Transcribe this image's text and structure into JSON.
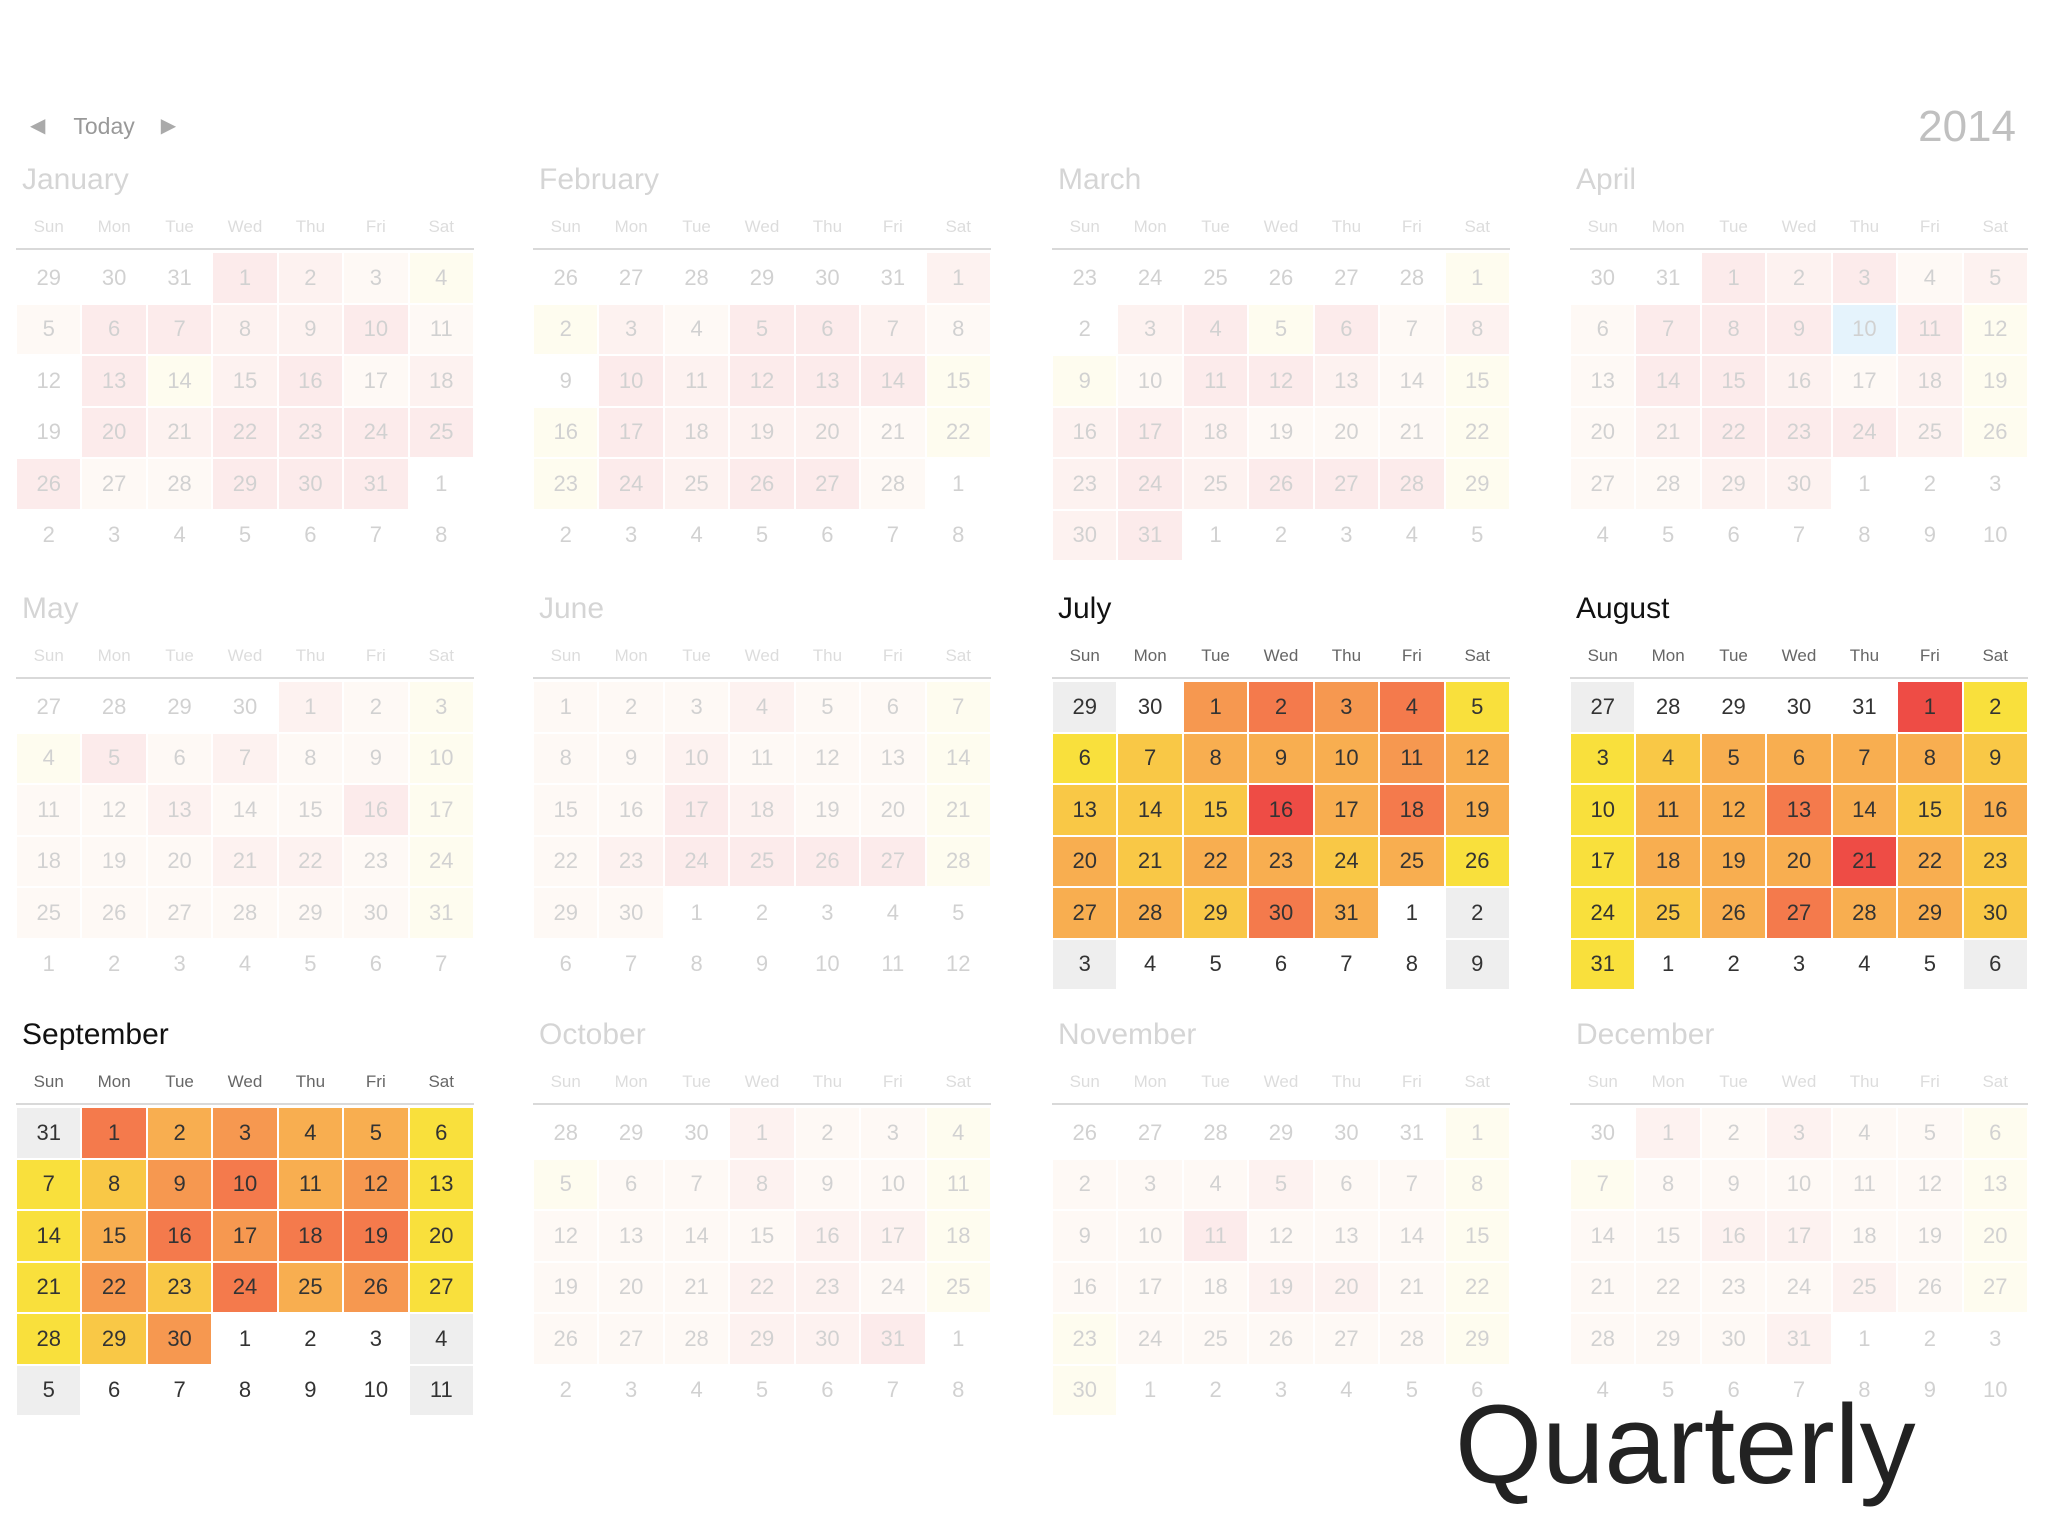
{
  "nav": {
    "prev_glyph": "◀",
    "today_label": "Today",
    "next_glyph": "▶"
  },
  "year": "2014",
  "caption": "Quarterly",
  "weekday_headers": [
    "Sun",
    "Mon",
    "Tue",
    "Wed",
    "Thu",
    "Fri",
    "Sat"
  ],
  "palette": {
    "0": "#ffffff",
    "g": "#eeeeee",
    "y": "#f9e03c",
    "yo": "#f9c846",
    "o": "#f8ae50",
    "do": "#f69850",
    "r": "#f47a4c",
    "R": "#ee4c45",
    "p1": "#fbe6d6",
    "p2": "#f9c9bd",
    "p3": "#f6a9a6",
    "py": "#fcf2bb",
    "b": "#8ccaf6"
  },
  "months": [
    {
      "name": "January",
      "focus": false,
      "days": [
        "29",
        "30",
        "31",
        "1",
        "2",
        "3",
        "4",
        "5",
        "6",
        "7",
        "8",
        "9",
        "10",
        "11",
        "12",
        "13",
        "14",
        "15",
        "16",
        "17",
        "18",
        "19",
        "20",
        "21",
        "22",
        "23",
        "24",
        "25",
        "26",
        "27",
        "28",
        "29",
        "30",
        "31",
        "1",
        "2",
        "3",
        "4",
        "5",
        "6",
        "7",
        "8"
      ],
      "heat": [
        "0",
        "0",
        "0",
        "p3",
        "p2",
        "p1",
        "py",
        "p1",
        "p3",
        "p3",
        "p2",
        "p2",
        "p3",
        "p1",
        "0",
        "p3",
        "py",
        "p2",
        "p3",
        "p1",
        "p2",
        "0",
        "p3",
        "p2",
        "p3",
        "p3",
        "p3",
        "p3",
        "p3",
        "p1",
        "p1",
        "p3",
        "p3",
        "p3",
        "0",
        "0",
        "0",
        "0",
        "0",
        "0",
        "0",
        "0"
      ]
    },
    {
      "name": "February",
      "focus": false,
      "days": [
        "26",
        "27",
        "28",
        "29",
        "30",
        "31",
        "1",
        "2",
        "3",
        "4",
        "5",
        "6",
        "7",
        "8",
        "9",
        "10",
        "11",
        "12",
        "13",
        "14",
        "15",
        "16",
        "17",
        "18",
        "19",
        "20",
        "21",
        "22",
        "23",
        "24",
        "25",
        "26",
        "27",
        "28",
        "1",
        "2",
        "3",
        "4",
        "5",
        "6",
        "7",
        "8"
      ],
      "heat": [
        "0",
        "0",
        "0",
        "0",
        "0",
        "0",
        "p2",
        "py",
        "p2",
        "p1",
        "p3",
        "p3",
        "p2",
        "p1",
        "0",
        "p3",
        "p2",
        "p3",
        "p3",
        "p3",
        "py",
        "py",
        "p3",
        "p2",
        "p2",
        "p2",
        "p1",
        "py",
        "py",
        "p3",
        "p2",
        "p3",
        "p3",
        "p1",
        "0",
        "0",
        "0",
        "0",
        "0",
        "0",
        "0",
        "0"
      ]
    },
    {
      "name": "March",
      "focus": false,
      "days": [
        "23",
        "24",
        "25",
        "26",
        "27",
        "28",
        "1",
        "2",
        "3",
        "4",
        "5",
        "6",
        "7",
        "8",
        "9",
        "10",
        "11",
        "12",
        "13",
        "14",
        "15",
        "16",
        "17",
        "18",
        "19",
        "20",
        "21",
        "22",
        "23",
        "24",
        "25",
        "26",
        "27",
        "28",
        "29",
        "30",
        "31",
        "1",
        "2",
        "3",
        "4",
        "5"
      ],
      "heat": [
        "0",
        "0",
        "0",
        "0",
        "0",
        "0",
        "py",
        "0",
        "p2",
        "p3",
        "py",
        "p3",
        "p1",
        "p2",
        "py",
        "p1",
        "p3",
        "p3",
        "p2",
        "p1",
        "py",
        "p2",
        "p3",
        "p2",
        "p1",
        "p1",
        "p1",
        "py",
        "p2",
        "p3",
        "p2",
        "p3",
        "p3",
        "p3",
        "py",
        "p2",
        "p3",
        "0",
        "0",
        "0",
        "0",
        "0"
      ]
    },
    {
      "name": "April",
      "focus": false,
      "days": [
        "30",
        "31",
        "1",
        "2",
        "3",
        "4",
        "5",
        "6",
        "7",
        "8",
        "9",
        "10",
        "11",
        "12",
        "13",
        "14",
        "15",
        "16",
        "17",
        "18",
        "19",
        "20",
        "21",
        "22",
        "23",
        "24",
        "25",
        "26",
        "27",
        "28",
        "29",
        "30",
        "1",
        "2",
        "3",
        "4",
        "5",
        "6",
        "7",
        "8",
        "9",
        "10"
      ],
      "heat": [
        "0",
        "0",
        "p3",
        "p2",
        "p3",
        "p1",
        "p2",
        "p1",
        "p3",
        "p3",
        "p3",
        "b",
        "p3",
        "py",
        "p1",
        "p3",
        "p3",
        "p2",
        "p1",
        "p2",
        "py",
        "p1",
        "p2",
        "p3",
        "p3",
        "p3",
        "p2",
        "py",
        "p1",
        "p1",
        "p2",
        "p2",
        "0",
        "0",
        "0",
        "0",
        "0",
        "0",
        "0",
        "0",
        "0",
        "0"
      ]
    },
    {
      "name": "May",
      "focus": false,
      "days": [
        "27",
        "28",
        "29",
        "30",
        "1",
        "2",
        "3",
        "4",
        "5",
        "6",
        "7",
        "8",
        "9",
        "10",
        "11",
        "12",
        "13",
        "14",
        "15",
        "16",
        "17",
        "18",
        "19",
        "20",
        "21",
        "22",
        "23",
        "24",
        "25",
        "26",
        "27",
        "28",
        "29",
        "30",
        "31",
        "1",
        "2",
        "3",
        "4",
        "5",
        "6",
        "7"
      ],
      "heat": [
        "0",
        "0",
        "0",
        "0",
        "p2",
        "p1",
        "py",
        "py",
        "p3",
        "p1",
        "p2",
        "p1",
        "p1",
        "py",
        "p1",
        "p1",
        "p2",
        "p1",
        "p1",
        "p3",
        "py",
        "p1",
        "p1",
        "p1",
        "p2",
        "p2",
        "p1",
        "py",
        "p1",
        "p1",
        "p1",
        "p1",
        "p1",
        "p1",
        "py",
        "0",
        "0",
        "0",
        "0",
        "0",
        "0",
        "0"
      ]
    },
    {
      "name": "June",
      "focus": false,
      "days": [
        "1",
        "2",
        "3",
        "4",
        "5",
        "6",
        "7",
        "8",
        "9",
        "10",
        "11",
        "12",
        "13",
        "14",
        "15",
        "16",
        "17",
        "18",
        "19",
        "20",
        "21",
        "22",
        "23",
        "24",
        "25",
        "26",
        "27",
        "28",
        "29",
        "30",
        "1",
        "2",
        "3",
        "4",
        "5",
        "6",
        "7",
        "8",
        "9",
        "10",
        "11",
        "12"
      ],
      "heat": [
        "p1",
        "p1",
        "p1",
        "p2",
        "p1",
        "p1",
        "py",
        "p1",
        "p1",
        "p2",
        "p1",
        "p1",
        "p1",
        "py",
        "p1",
        "p1",
        "p3",
        "p2",
        "p1",
        "p1",
        "py",
        "p1",
        "p2",
        "p3",
        "p3",
        "p3",
        "p3",
        "py",
        "p1",
        "p1",
        "0",
        "0",
        "0",
        "0",
        "0",
        "0",
        "0",
        "0",
        "0",
        "0",
        "0",
        "0"
      ]
    },
    {
      "name": "July",
      "focus": true,
      "days": [
        "29",
        "30",
        "1",
        "2",
        "3",
        "4",
        "5",
        "6",
        "7",
        "8",
        "9",
        "10",
        "11",
        "12",
        "13",
        "14",
        "15",
        "16",
        "17",
        "18",
        "19",
        "20",
        "21",
        "22",
        "23",
        "24",
        "25",
        "26",
        "27",
        "28",
        "29",
        "30",
        "31",
        "1",
        "2",
        "3",
        "4",
        "5",
        "6",
        "7",
        "8",
        "9"
      ],
      "heat": [
        "g",
        "0",
        "do",
        "r",
        "do",
        "r",
        "y",
        "y",
        "yo",
        "o",
        "o",
        "o",
        "do",
        "o",
        "yo",
        "yo",
        "yo",
        "R",
        "o",
        "r",
        "o",
        "o",
        "yo",
        "o",
        "o",
        "yo",
        "o",
        "y",
        "o",
        "o",
        "yo",
        "r",
        "o",
        "0",
        "g",
        "g",
        "0",
        "0",
        "0",
        "0",
        "0",
        "g"
      ]
    },
    {
      "name": "August",
      "focus": true,
      "days": [
        "27",
        "28",
        "29",
        "30",
        "31",
        "1",
        "2",
        "3",
        "4",
        "5",
        "6",
        "7",
        "8",
        "9",
        "10",
        "11",
        "12",
        "13",
        "14",
        "15",
        "16",
        "17",
        "18",
        "19",
        "20",
        "21",
        "22",
        "23",
        "24",
        "25",
        "26",
        "27",
        "28",
        "29",
        "30",
        "31",
        "1",
        "2",
        "3",
        "4",
        "5",
        "6"
      ],
      "heat": [
        "g",
        "0",
        "0",
        "0",
        "0",
        "R",
        "y",
        "y",
        "yo",
        "o",
        "o",
        "o",
        "o",
        "yo",
        "y",
        "o",
        "o",
        "r",
        "o",
        "yo",
        "o",
        "y",
        "o",
        "o",
        "o",
        "R",
        "o",
        "yo",
        "y",
        "yo",
        "o",
        "r",
        "o",
        "o",
        "yo",
        "y",
        "0",
        "0",
        "0",
        "0",
        "0",
        "g"
      ]
    },
    {
      "name": "September",
      "focus": true,
      "days": [
        "31",
        "1",
        "2",
        "3",
        "4",
        "5",
        "6",
        "7",
        "8",
        "9",
        "10",
        "11",
        "12",
        "13",
        "14",
        "15",
        "16",
        "17",
        "18",
        "19",
        "20",
        "21",
        "22",
        "23",
        "24",
        "25",
        "26",
        "27",
        "28",
        "29",
        "30",
        "1",
        "2",
        "3",
        "4",
        "5",
        "6",
        "7",
        "8",
        "9",
        "10",
        "11"
      ],
      "heat": [
        "g",
        "r",
        "o",
        "do",
        "o",
        "o",
        "y",
        "y",
        "yo",
        "do",
        "r",
        "o",
        "do",
        "y",
        "y",
        "o",
        "r",
        "do",
        "r",
        "r",
        "y",
        "y",
        "do",
        "yo",
        "r",
        "o",
        "do",
        "y",
        "y",
        "yo",
        "do",
        "0",
        "0",
        "0",
        "g",
        "g",
        "0",
        "0",
        "0",
        "0",
        "0",
        "g"
      ]
    },
    {
      "name": "October",
      "focus": false,
      "days": [
        "28",
        "29",
        "30",
        "1",
        "2",
        "3",
        "4",
        "5",
        "6",
        "7",
        "8",
        "9",
        "10",
        "11",
        "12",
        "13",
        "14",
        "15",
        "16",
        "17",
        "18",
        "19",
        "20",
        "21",
        "22",
        "23",
        "24",
        "25",
        "26",
        "27",
        "28",
        "29",
        "30",
        "31",
        "1",
        "2",
        "3",
        "4",
        "5",
        "6",
        "7",
        "8"
      ],
      "heat": [
        "0",
        "0",
        "0",
        "p2",
        "p1",
        "p1",
        "py",
        "py",
        "p1",
        "p1",
        "p2",
        "p1",
        "p1",
        "py",
        "p1",
        "p1",
        "p1",
        "p1",
        "p2",
        "p2",
        "py",
        "p1",
        "p1",
        "p1",
        "p2",
        "p2",
        "p1",
        "py",
        "p1",
        "p1",
        "p1",
        "p2",
        "p2",
        "p3",
        "0",
        "0",
        "0",
        "0",
        "0",
        "0",
        "0",
        "0"
      ]
    },
    {
      "name": "November",
      "focus": false,
      "days": [
        "26",
        "27",
        "28",
        "29",
        "30",
        "31",
        "1",
        "2",
        "3",
        "4",
        "5",
        "6",
        "7",
        "8",
        "9",
        "10",
        "11",
        "12",
        "13",
        "14",
        "15",
        "16",
        "17",
        "18",
        "19",
        "20",
        "21",
        "22",
        "23",
        "24",
        "25",
        "26",
        "27",
        "28",
        "29",
        "30",
        "1",
        "2",
        "3",
        "4",
        "5",
        "6"
      ],
      "heat": [
        "0",
        "0",
        "0",
        "0",
        "0",
        "0",
        "py",
        "p1",
        "p1",
        "p1",
        "p2",
        "p1",
        "p1",
        "py",
        "p1",
        "p1",
        "p3",
        "p1",
        "p1",
        "p1",
        "py",
        "p1",
        "p1",
        "p1",
        "p2",
        "p2",
        "p1",
        "py",
        "py",
        "p1",
        "p1",
        "p1",
        "p1",
        "p1",
        "py",
        "py",
        "0",
        "0",
        "0",
        "0",
        "0",
        "0"
      ]
    },
    {
      "name": "December",
      "focus": false,
      "days": [
        "30",
        "1",
        "2",
        "3",
        "4",
        "5",
        "6",
        "7",
        "8",
        "9",
        "10",
        "11",
        "12",
        "13",
        "14",
        "15",
        "16",
        "17",
        "18",
        "19",
        "20",
        "21",
        "22",
        "23",
        "24",
        "25",
        "26",
        "27",
        "28",
        "29",
        "30",
        "31",
        "1",
        "2",
        "3",
        "4",
        "5",
        "6",
        "7",
        "8",
        "9",
        "10"
      ],
      "heat": [
        "0",
        "p2",
        "p1",
        "p2",
        "p1",
        "p1",
        "py",
        "py",
        "p1",
        "p1",
        "p1",
        "p1",
        "p1",
        "py",
        "p1",
        "p1",
        "p2",
        "p2",
        "p1",
        "p1",
        "py",
        "p1",
        "p1",
        "p1",
        "p1",
        "p2",
        "p1",
        "py",
        "p1",
        "p1",
        "p1",
        "p2",
        "0",
        "0",
        "0",
        "0",
        "0",
        "0",
        "0",
        "0",
        "0",
        "0"
      ]
    }
  ]
}
